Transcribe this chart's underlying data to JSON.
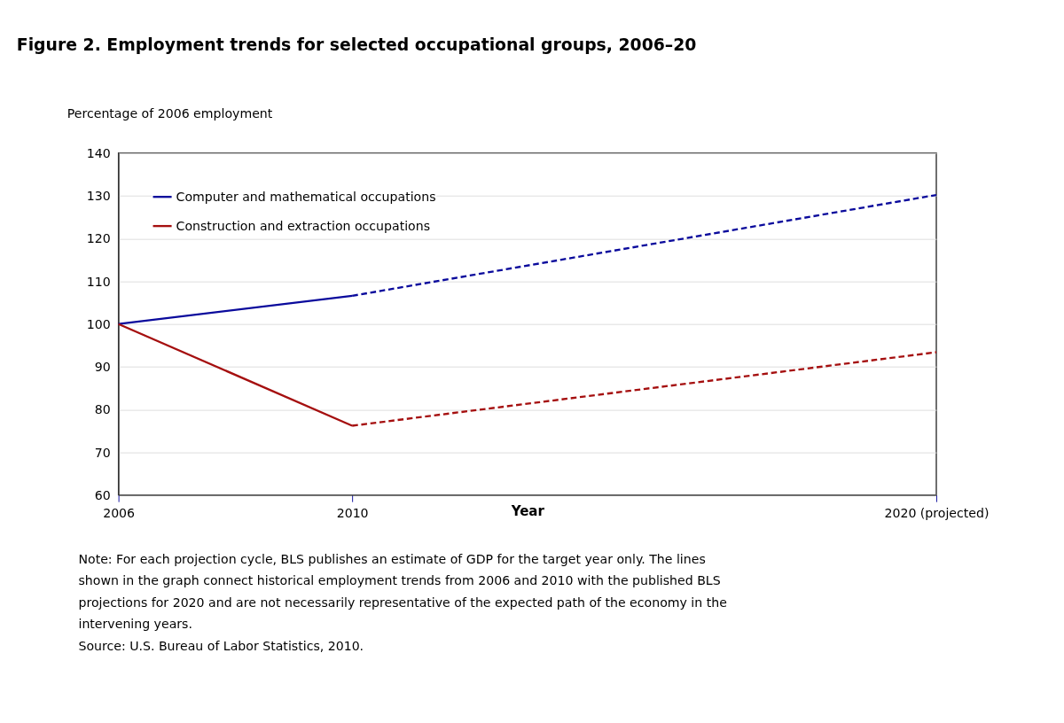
{
  "chart_data": {
    "type": "line",
    "title": "Figure 2. Employment trends for selected occupational groups, 2006–20",
    "ylabel": "Percentage of 2006 employment",
    "xlabel": "Year",
    "xlim": [
      2006,
      2020
    ],
    "xticks": [
      2006,
      2010,
      {
        "value": 2020,
        "label": "2020 (projected)"
      }
    ],
    "ylim": [
      60,
      140
    ],
    "yticks": [
      60,
      70,
      80,
      90,
      100,
      110,
      120,
      130,
      140
    ],
    "grid": "y",
    "legend": "top left",
    "series": [
      {
        "name": "Computer and mathematical occupations",
        "color": "#0a0a9c",
        "x": [
          2006,
          2010
        ],
        "values": [
          100,
          106.6
        ],
        "line_style": "solid"
      },
      {
        "name": "Construction and extraction occupations",
        "color": "#a50f0f",
        "x": [
          2006,
          2010
        ],
        "values": [
          100,
          76.2
        ],
        "line_style": "solid"
      },
      {
        "color": "#0a0a9c",
        "x": [
          2010,
          2020
        ],
        "values": [
          106.6,
          130.2
        ],
        "line_style": "dashed"
      },
      {
        "color": "#a50f0f",
        "x": [
          2010,
          2020
        ],
        "values": [
          76.2,
          93.4
        ],
        "line_style": "dashed"
      }
    ],
    "annotations": [
      "Note: For each projection cycle, BLS publishes an estimate of GDP for the target year only. The lines shown in the graph connect historical employment trends from 2006 and 2010 with the published BLS projections for 2020 and are not necessarily representative of the expected path of the economy in the intervening years.",
      "Source: U.S. Bureau of Labor Statistics, 2010."
    ]
  }
}
